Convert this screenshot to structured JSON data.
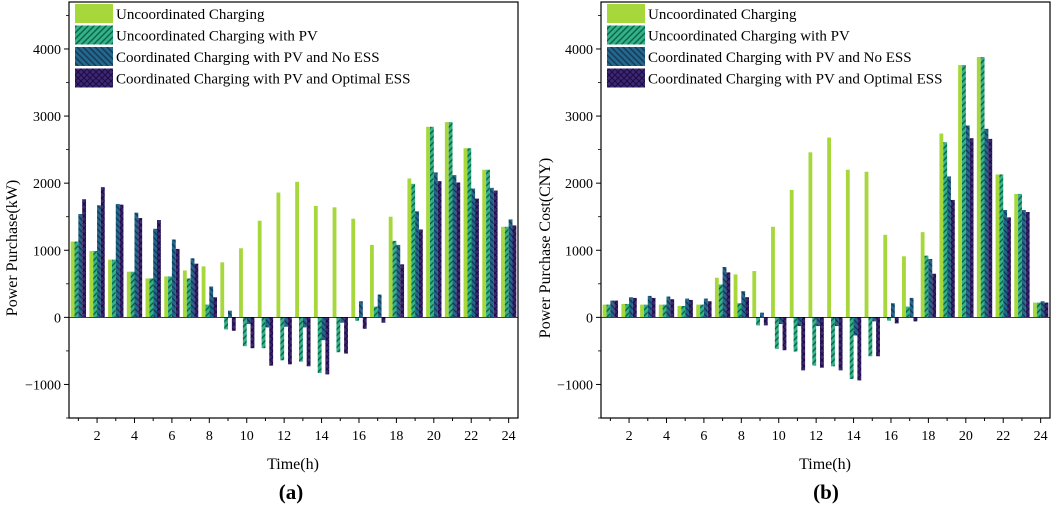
{
  "colors": {
    "s1": "#a6d83c",
    "s2": "#2fb389",
    "s3": "#24668c",
    "s4": "#3f2778",
    "s2_hatch": "#125f45",
    "s3_hatch": "#123a54",
    "s4_hatch": "#1b0c40"
  },
  "chart_data": [
    {
      "type": "bar",
      "caption": "(a)",
      "title": "",
      "xlabel": "Time(h)",
      "ylabel": "Power Purchase(kW)",
      "ylim": [
        -1500,
        4700
      ],
      "yticks": [
        -1000,
        0,
        1000,
        2000,
        3000,
        4000
      ],
      "ytick_labels": [
        "−1000",
        "0",
        "1000",
        "2000",
        "3000",
        "4000"
      ],
      "xticks": [
        2,
        4,
        6,
        8,
        10,
        12,
        14,
        16,
        18,
        20,
        22,
        24
      ],
      "xtick_labels": [
        "2",
        "4",
        "6",
        "8",
        "10",
        "12",
        "14",
        "16",
        "18",
        "20",
        "22",
        "24"
      ],
      "legend_position": "top-left",
      "categories": [
        1,
        2,
        3,
        4,
        5,
        6,
        7,
        8,
        9,
        10,
        11,
        12,
        13,
        14,
        15,
        16,
        17,
        18,
        19,
        20,
        21,
        22,
        23,
        24
      ],
      "series": [
        {
          "name": "Uncoordinated Charging",
          "pattern": "solid",
          "values": [
            1130,
            990,
            860,
            680,
            580,
            610,
            700,
            760,
            820,
            1030,
            1440,
            1860,
            2020,
            1660,
            1640,
            1470,
            1080,
            1500,
            2070,
            2840,
            2910,
            2520,
            2200,
            1350
          ]
        },
        {
          "name": "Uncoordinated Charging with PV",
          "pattern": "diagonal",
          "values": [
            1130,
            990,
            860,
            680,
            580,
            610,
            580,
            190,
            -180,
            -430,
            -460,
            -640,
            -660,
            -830,
            -520,
            -50,
            160,
            1140,
            1990,
            2840,
            2910,
            2520,
            2200,
            1350
          ]
        },
        {
          "name": "Coordinated Charging with PV and No ESS",
          "pattern": "diagonal",
          "values": [
            1540,
            1670,
            1690,
            1560,
            1320,
            1160,
            880,
            460,
            100,
            -100,
            -150,
            -140,
            -150,
            -340,
            -80,
            240,
            340,
            1080,
            1580,
            2160,
            2120,
            1920,
            1930,
            1460
          ]
        },
        {
          "name": "Coordinated Charging with PV and Optimal ESS",
          "pattern": "crosshatch",
          "values": [
            1760,
            1940,
            1680,
            1480,
            1450,
            1020,
            800,
            300,
            -200,
            -460,
            -720,
            -700,
            -730,
            -850,
            -540,
            -170,
            -80,
            790,
            1310,
            2030,
            2010,
            1770,
            1890,
            1370
          ]
        }
      ]
    },
    {
      "type": "bar",
      "caption": "(b)",
      "title": "",
      "xlabel": "Time(h)",
      "ylabel": "Power Purchase Cost(CNY)",
      "ylim": [
        -1500,
        4700
      ],
      "yticks": [
        -1000,
        0,
        1000,
        2000,
        3000,
        4000
      ],
      "ytick_labels": [
        "−1000",
        "0",
        "1000",
        "2000",
        "3000",
        "4000"
      ],
      "xticks": [
        2,
        4,
        6,
        8,
        10,
        12,
        14,
        16,
        18,
        20,
        22,
        24
      ],
      "xtick_labels": [
        "2",
        "4",
        "6",
        "8",
        "10",
        "12",
        "14",
        "16",
        "18",
        "20",
        "22",
        "24"
      ],
      "legend_position": "top-left",
      "categories": [
        1,
        2,
        3,
        4,
        5,
        6,
        7,
        8,
        9,
        10,
        11,
        12,
        13,
        14,
        15,
        16,
        17,
        18,
        19,
        20,
        21,
        22,
        23,
        24
      ],
      "series": [
        {
          "name": "Uncoordinated Charging",
          "pattern": "solid",
          "values": [
            190,
            200,
            190,
            190,
            170,
            190,
            590,
            640,
            690,
            1350,
            1900,
            2460,
            2680,
            2200,
            2170,
            1230,
            910,
            1270,
            2740,
            3760,
            3880,
            2130,
            1840,
            220
          ]
        },
        {
          "name": "Uncoordinated Charging with PV",
          "pattern": "diagonal",
          "values": [
            190,
            200,
            190,
            190,
            170,
            190,
            490,
            210,
            -120,
            -470,
            -510,
            -720,
            -730,
            -920,
            -580,
            -50,
            160,
            920,
            2610,
            3760,
            3880,
            2130,
            1840,
            220
          ]
        },
        {
          "name": "Coordinated Charging with PV and No ESS",
          "pattern": "diagonal",
          "values": [
            250,
            300,
            320,
            310,
            280,
            280,
            750,
            390,
            70,
            -100,
            -130,
            -130,
            -130,
            -270,
            -60,
            210,
            290,
            870,
            2100,
            2860,
            2810,
            1600,
            1600,
            240
          ]
        },
        {
          "name": "Coordinated Charging with PV and Optimal ESS",
          "pattern": "crosshatch",
          "values": [
            250,
            290,
            290,
            270,
            260,
            240,
            670,
            300,
            -120,
            -490,
            -790,
            -750,
            -790,
            -940,
            -580,
            -90,
            -60,
            650,
            1750,
            2670,
            2660,
            1490,
            1570,
            220
          ]
        }
      ]
    }
  ]
}
